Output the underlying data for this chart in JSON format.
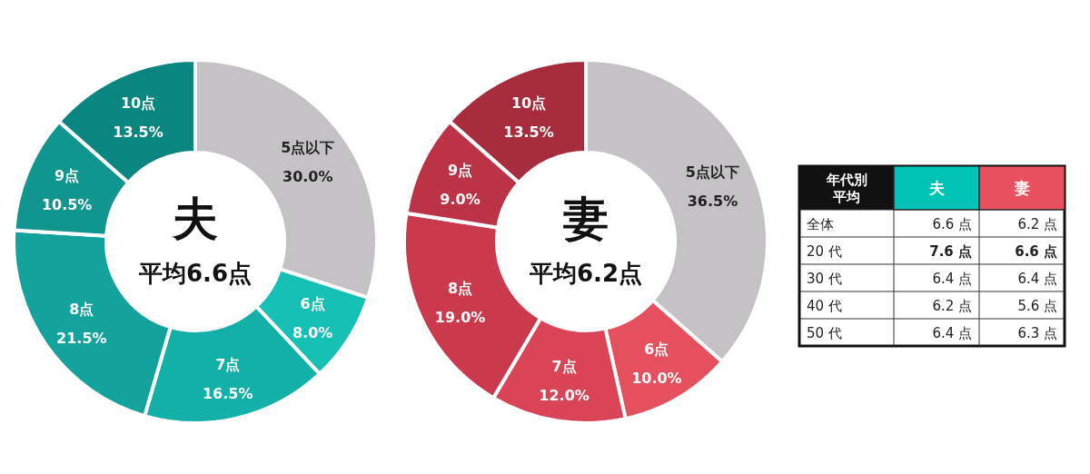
{
  "chart_data": [
    {
      "type": "donut",
      "title": "夫",
      "subtitle": "平均6.6点",
      "categories": [
        "5点以下",
        "6点",
        "7点",
        "8点",
        "9点",
        "10点"
      ],
      "values": [
        30.0,
        8.0,
        16.5,
        21.5,
        10.5,
        13.5
      ],
      "value_labels": [
        "30.0%",
        "8.0%",
        "16.5%",
        "21.5%",
        "10.5%",
        "13.5%"
      ],
      "colors": [
        "#c4c2c5",
        "#17c0b4",
        "#13b0a8",
        "#14a29c",
        "#10958f",
        "#0b8580"
      ]
    },
    {
      "type": "donut",
      "title": "妻",
      "subtitle": "平均6.2点",
      "categories": [
        "5点以下",
        "6点",
        "7点",
        "8点",
        "9点",
        "10点"
      ],
      "values": [
        36.5,
        10.0,
        12.0,
        19.0,
        9.0,
        13.5
      ],
      "value_labels": [
        "36.5%",
        "10.0%",
        "12.0%",
        "19.0%",
        "9.0%",
        "13.5%"
      ],
      "colors": [
        "#c4c2c5",
        "#e4505e",
        "#d94456",
        "#cb3a4c",
        "#bc3345",
        "#a72c3c"
      ]
    },
    {
      "type": "heatmap",
      "title": "年代別平均",
      "categories": [
        "夫",
        "妻"
      ],
      "colors": [
        "#00c2b5",
        "#e8505f"
      ],
      "y_categories": [
        "全体",
        "20 代",
        "30 代",
        "40 代",
        "50 代"
      ],
      "cells": [
        [
          6.6,
          6.2
        ],
        [
          7.6,
          6.6
        ],
        [
          6.4,
          6.4
        ],
        [
          6.2,
          5.6
        ],
        [
          6.4,
          6.3
        ]
      ],
      "cell_labels": [
        [
          "6.6 点",
          "6.2 点"
        ],
        [
          "7.6 点",
          "6.6 点"
        ],
        [
          "6.4 点",
          "6.4 点"
        ],
        [
          "6.2 点",
          "5.6 点"
        ],
        [
          "6.4 点",
          "6.3 点"
        ]
      ]
    }
  ]
}
